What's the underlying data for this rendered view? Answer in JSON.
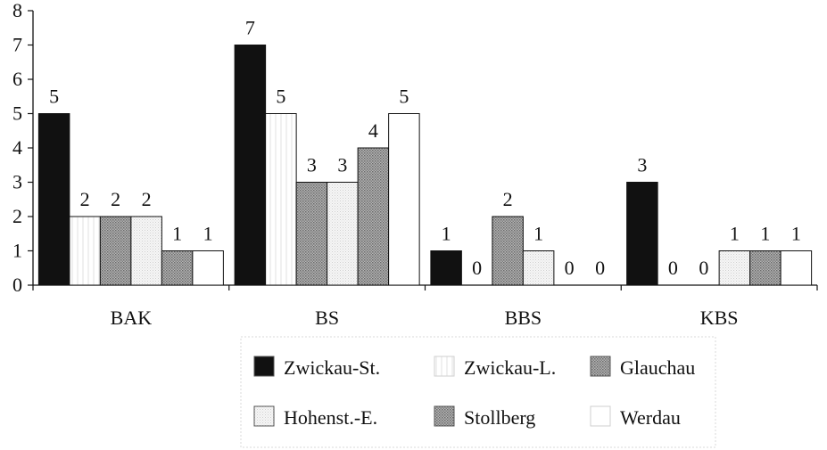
{
  "chart_data": {
    "type": "bar",
    "title": "",
    "xlabel": "",
    "ylabel": "",
    "ylim": [
      0,
      8
    ],
    "yticks": [
      0,
      1,
      2,
      3,
      4,
      5,
      6,
      7,
      8
    ],
    "grid": false,
    "legend_position": "bottom",
    "categories": [
      "BAK",
      "BS",
      "BBS",
      "KBS"
    ],
    "series": [
      {
        "name": "Zwickau-St.",
        "values": [
          5,
          7,
          1,
          3
        ],
        "fill": "#111111",
        "pattern": "solid"
      },
      {
        "name": "Zwickau-L.",
        "values": [
          2,
          5,
          0,
          0
        ],
        "fill": "#ffffff",
        "pattern": "vlines"
      },
      {
        "name": "Glauchau",
        "values": [
          2,
          3,
          2,
          0
        ],
        "fill": "#9a9a9a",
        "pattern": "dots-dark"
      },
      {
        "name": "Hohenst.-E.",
        "values": [
          2,
          3,
          1,
          1
        ],
        "fill": "#efefef",
        "pattern": "dots-light"
      },
      {
        "name": "Stollberg",
        "values": [
          1,
          4,
          0,
          1
        ],
        "fill": "#8c8c8c",
        "pattern": "dots-dark"
      },
      {
        "name": "Werdau",
        "values": [
          1,
          5,
          0,
          1
        ],
        "fill": "#ffffff",
        "pattern": "plain"
      }
    ]
  }
}
